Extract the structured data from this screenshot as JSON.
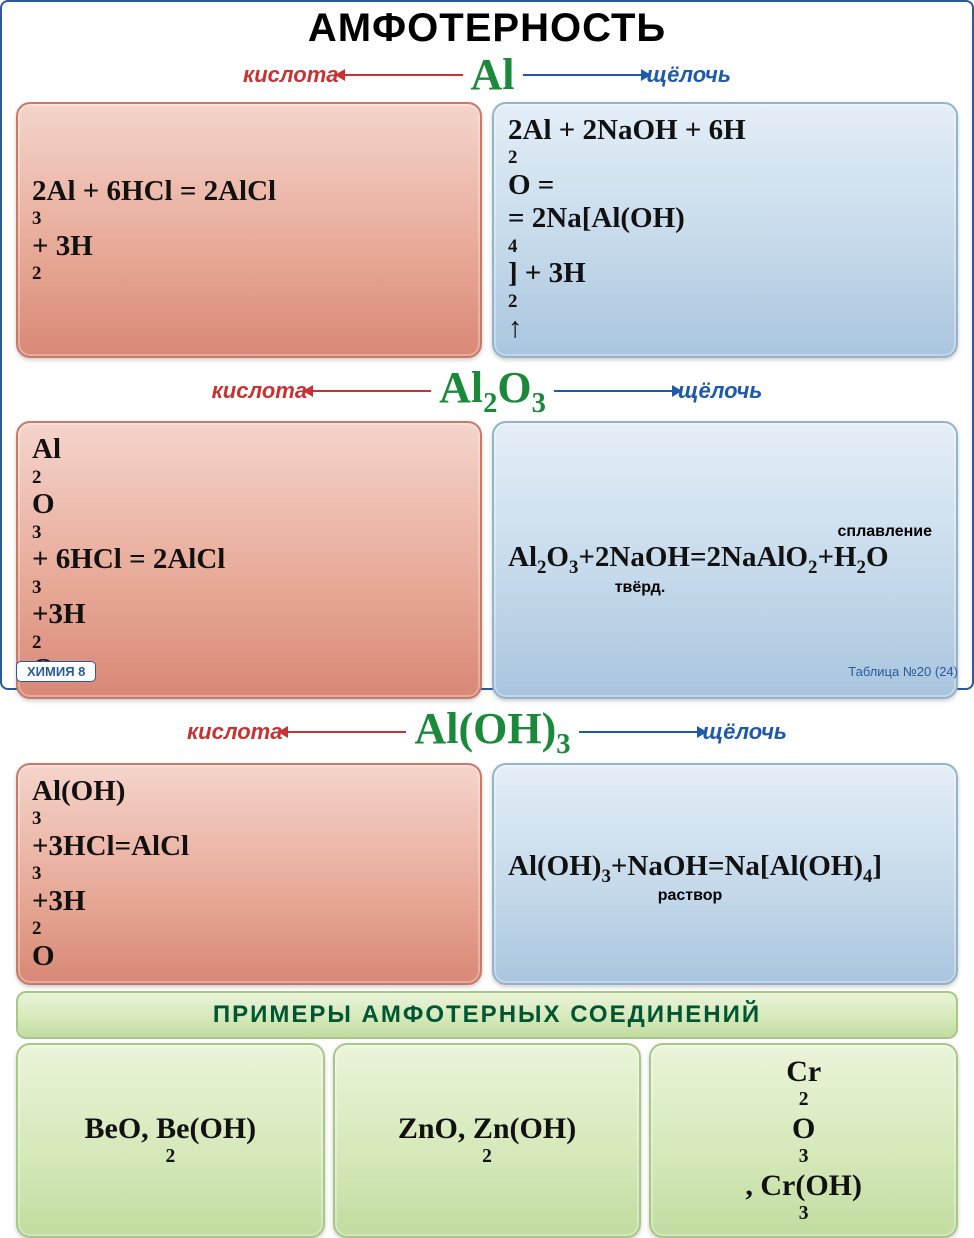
{
  "colors": {
    "border": "#2a5a9c",
    "title": "#000000",
    "acid": "#c83232",
    "base": "#1e5aa8",
    "element": "#1a8a3a",
    "acid_card_bg": [
      "#f5d4cb",
      "#e7a896",
      "#d98876"
    ],
    "base_card_bg": [
      "#e4eef7",
      "#c3d8ea",
      "#a9c5de"
    ],
    "green_card_bg": [
      "#eaf4d9",
      "#d4e8b8",
      "#c1dca0"
    ]
  },
  "title": "АМФОТЕРНОСТЬ",
  "labels": {
    "acid": "кислота",
    "base": "щёлочь",
    "fusion": "сплавление",
    "solid": "твёрд.",
    "solution": "раствор"
  },
  "sections": [
    {
      "element_html": "Al",
      "acid_eq": "2Al + 6HCl = 2AlCl<sub class=\"sub\">3</sub>+ 3H<sub class=\"sub\">2</sub>",
      "base_eq": "2Al + 2NaOH + 6H<sub class=\"sub\">2</sub>O =<br>= 2Na[Al(OH)<sub class=\"sub\">4</sub>] + 3H<sub class=\"sub\">2</sub><span class=\"uparrow\">↑</span>"
    },
    {
      "element_html": "Al<sub class=\"sub\">2</sub>O<sub class=\"sub\">3</sub>",
      "acid_eq": "Al<sub class=\"sub\">2</sub>O<sub class=\"sub\">3</sub>+ 6HCl = 2AlCl<sub class=\"sub\">3</sub>+3H<sub class=\"sub\">2</sub>O",
      "base_note_above": "сплавление",
      "base_eq": "Al<sub class=\"sub\">2</sub>O<sub class=\"sub\">3</sub>+2NaOH=2NaAlO<sub class=\"sub\">2</sub>+H<sub class=\"sub\">2</sub>O",
      "base_note_below": "твёрд."
    },
    {
      "element_html": "Al(OH)<sub class=\"sub\">3</sub>",
      "acid_eq": "Al(OH)<sub class=\"sub\">3</sub>+3HCl=AlCl<sub class=\"sub\">3</sub>+3H<sub class=\"sub\">2</sub>O",
      "base_eq": "Al(OH)<sub class=\"sub\">3</sub>+NaOH=Na[Al(OH)<sub class=\"sub\">4</sub>]",
      "base_note_below": "раствор"
    }
  ],
  "examples_title": "ПРИМЕРЫ  АМФОТЕРНЫХ  СОЕДИНЕНИЙ",
  "examples": [
    "BeO, Be(OH)<sub class=\"sub\">2</sub>",
    "ZnO, Zn(OH)<sub class=\"sub\">2</sub>",
    "Cr<sub class=\"sub\">2</sub>O<sub class=\"sub\">3</sub>, Cr(OH)<sub class=\"sub\">3</sub>"
  ],
  "footer": {
    "subject": "ХИМИЯ 8",
    "table_no": "Таблица №20 (24)"
  }
}
